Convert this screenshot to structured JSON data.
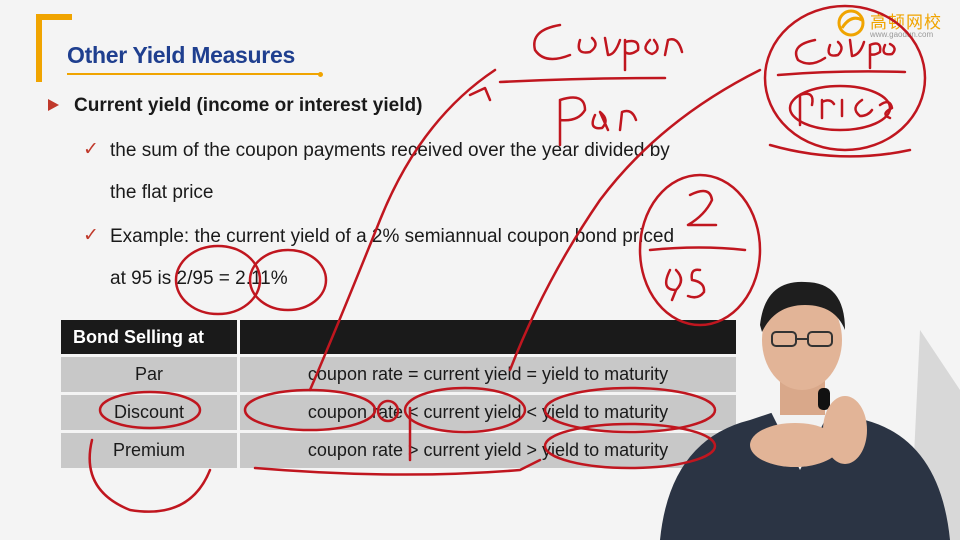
{
  "slide": {
    "title": "Other Yield Measures",
    "logo_text": "高顿网校",
    "logo_url": "www.gaodun.com",
    "bullet_main": "Current yield (income or interest yield)",
    "sub1_line1": "the sum of the coupon payments received over the year divided by",
    "sub1_line2": "the flat price",
    "sub2_line1": "Example: the current yield of a 2% semiannual coupon bond priced",
    "sub2_line2": "at 95 is 2/95 = 2.11%"
  },
  "table": {
    "headers": [
      "Bond Selling at",
      ""
    ],
    "rows": [
      {
        "label": "Par",
        "relation": "coupon rate = current yield = yield to maturity"
      },
      {
        "label": "Discount",
        "relation": "coupon rate < current yield < yield to maturity"
      },
      {
        "label": "Premium",
        "relation": "coupon rate > current yield > yield to maturity"
      }
    ]
  },
  "colors": {
    "accent": "#f0a400",
    "title": "#1f3f8f",
    "ink": "#c0161f",
    "bullet": "#c0392b"
  }
}
